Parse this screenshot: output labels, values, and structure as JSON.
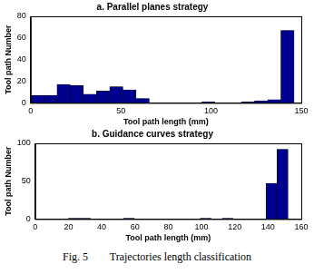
{
  "chart_data": [
    {
      "type": "histogram",
      "title": "a. Parallel planes strategy",
      "x_label": "Tool path length (mm)",
      "y_label": "Tool path Number",
      "bins": [
        0,
        7.3,
        14.6,
        21.9,
        29.2,
        36.5,
        43.8,
        51.1,
        58.4,
        65.7,
        73,
        80.3,
        87.6,
        94.9,
        102.2,
        109.5,
        116.8,
        124.1,
        131.4,
        138.7,
        146
      ],
      "values": [
        7,
        7,
        17,
        16,
        8,
        11,
        15,
        12,
        4,
        0,
        0,
        0,
        0,
        1,
        0,
        0,
        1,
        2,
        3,
        67
      ],
      "color": "#00008f",
      "xlim": [
        0,
        150
      ],
      "xticks": [
        0,
        50,
        100,
        150
      ],
      "ylim": [
        0,
        80
      ],
      "yticks": [
        0,
        20,
        40,
        60,
        80
      ],
      "grid": false
    },
    {
      "type": "histogram",
      "title": "b. Guidance curves strategy",
      "x_label": "Tool path length (mm)",
      "y_label": "Tool path Number",
      "bins": [
        20,
        26.6,
        33.2,
        39.8,
        46.4,
        53,
        59.6,
        66.2,
        72.8,
        79.4,
        86,
        92.6,
        99.2,
        105.8,
        112.4,
        119,
        125.6,
        132.2,
        138.8,
        145.4,
        152
      ],
      "values": [
        1,
        1,
        0,
        0,
        0,
        1,
        0,
        0,
        0,
        0,
        0,
        0,
        1,
        0,
        1,
        0,
        0,
        0,
        47,
        92
      ],
      "color": "#00008f",
      "xlim": [
        0,
        160
      ],
      "xticks": [
        0,
        20,
        40,
        60,
        80,
        100,
        120,
        140,
        160
      ],
      "ylim": [
        0,
        100
      ],
      "yticks": [
        0,
        50,
        100
      ],
      "grid": false
    }
  ],
  "caption": "Fig. 5        Trajectories length classification"
}
